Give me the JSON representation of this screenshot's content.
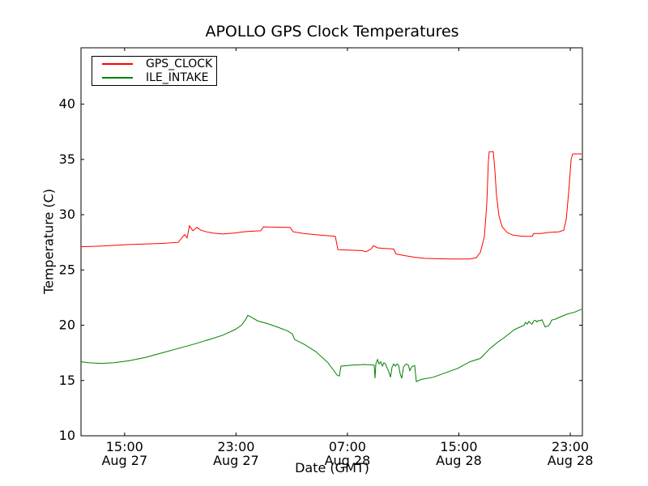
{
  "chart_data": {
    "type": "line",
    "title": "APOLLO GPS Clock Temperatures",
    "xlabel": "Date (GMT)",
    "ylabel": "Temperature (C)",
    "x_unit": "hours since Aug 27 00:00 GMT",
    "xlim": [
      11.87,
      47.87
    ],
    "ylim": [
      10,
      45.1
    ],
    "grid": false,
    "legend_position": "upper-left",
    "axis_color": "#000000",
    "background_color": "#ffffff",
    "yticks": [
      10,
      15,
      20,
      25,
      30,
      35,
      40
    ],
    "xticks": [
      {
        "x": 15,
        "time": "15:00",
        "date": "Aug 27"
      },
      {
        "x": 23,
        "time": "23:00",
        "date": "Aug 27"
      },
      {
        "x": 31,
        "time": "07:00",
        "date": "Aug 28"
      },
      {
        "x": 39,
        "time": "15:00",
        "date": "Aug 28"
      },
      {
        "x": 47,
        "time": "23:00",
        "date": "Aug 28"
      }
    ],
    "series": [
      {
        "name": "GPS_CLOCK",
        "color": "#ff0000",
        "points": [
          [
            11.87,
            27.1
          ],
          [
            13.03,
            27.15
          ],
          [
            15.36,
            27.3
          ],
          [
            17.69,
            27.4
          ],
          [
            18.85,
            27.5
          ],
          [
            19.31,
            28.2
          ],
          [
            19.49,
            27.9
          ],
          [
            19.66,
            29.0
          ],
          [
            19.9,
            28.55
          ],
          [
            20.19,
            28.85
          ],
          [
            20.48,
            28.6
          ],
          [
            20.88,
            28.45
          ],
          [
            21.29,
            28.35
          ],
          [
            22.05,
            28.25
          ],
          [
            22.92,
            28.35
          ],
          [
            23.5,
            28.45
          ],
          [
            24.08,
            28.5
          ],
          [
            24.78,
            28.55
          ],
          [
            24.96,
            28.9
          ],
          [
            26.88,
            28.85
          ],
          [
            27.11,
            28.45
          ],
          [
            27.86,
            28.3
          ],
          [
            29.03,
            28.15
          ],
          [
            30.13,
            28.05
          ],
          [
            30.31,
            26.85
          ],
          [
            31.06,
            26.8
          ],
          [
            32.05,
            26.75
          ],
          [
            32.34,
            26.65
          ],
          [
            32.69,
            26.9
          ],
          [
            32.87,
            27.2
          ],
          [
            33.16,
            27.0
          ],
          [
            33.68,
            26.95
          ],
          [
            34.32,
            26.9
          ],
          [
            34.49,
            26.45
          ],
          [
            35.13,
            26.3
          ],
          [
            35.83,
            26.15
          ],
          [
            36.59,
            26.05
          ],
          [
            38.33,
            26.0
          ],
          [
            39.79,
            26.0
          ],
          [
            40.25,
            26.1
          ],
          [
            40.54,
            26.6
          ],
          [
            40.83,
            28.0
          ],
          [
            41.01,
            31.0
          ],
          [
            41.12,
            34.8
          ],
          [
            41.18,
            35.7
          ],
          [
            41.47,
            35.7
          ],
          [
            41.59,
            34.0
          ],
          [
            41.7,
            31.8
          ],
          [
            41.88,
            29.9
          ],
          [
            42.11,
            28.9
          ],
          [
            42.46,
            28.4
          ],
          [
            42.87,
            28.15
          ],
          [
            43.57,
            28.05
          ],
          [
            44.26,
            28.05
          ],
          [
            44.38,
            28.3
          ],
          [
            44.9,
            28.3
          ],
          [
            45.49,
            28.4
          ],
          [
            46.18,
            28.45
          ],
          [
            46.53,
            28.6
          ],
          [
            46.71,
            29.6
          ],
          [
            46.88,
            32.0
          ],
          [
            47.06,
            35.0
          ],
          [
            47.17,
            35.5
          ],
          [
            47.81,
            35.5
          ]
        ]
      },
      {
        "name": "ILE_INTAKE",
        "color": "#008000",
        "points": [
          [
            11.87,
            16.7
          ],
          [
            12.45,
            16.6
          ],
          [
            13.33,
            16.55
          ],
          [
            14.2,
            16.6
          ],
          [
            15.36,
            16.8
          ],
          [
            16.52,
            17.1
          ],
          [
            17.69,
            17.5
          ],
          [
            18.85,
            17.9
          ],
          [
            20.01,
            18.3
          ],
          [
            21.18,
            18.75
          ],
          [
            22.05,
            19.1
          ],
          [
            22.92,
            19.6
          ],
          [
            23.39,
            20.0
          ],
          [
            23.68,
            20.5
          ],
          [
            23.85,
            20.9
          ],
          [
            24.08,
            20.75
          ],
          [
            24.55,
            20.4
          ],
          [
            25.25,
            20.15
          ],
          [
            25.83,
            19.9
          ],
          [
            26.7,
            19.5
          ],
          [
            27.05,
            19.2
          ],
          [
            27.22,
            18.7
          ],
          [
            27.86,
            18.3
          ],
          [
            28.74,
            17.6
          ],
          [
            29.61,
            16.6
          ],
          [
            30.02,
            15.9
          ],
          [
            30.25,
            15.5
          ],
          [
            30.42,
            15.4
          ],
          [
            30.54,
            16.3
          ],
          [
            31.35,
            16.4
          ],
          [
            32.22,
            16.45
          ],
          [
            32.87,
            16.4
          ],
          [
            32.92,
            16.4
          ],
          [
            32.98,
            15.2
          ],
          [
            33.04,
            16.5
          ],
          [
            33.16,
            16.9
          ],
          [
            33.27,
            16.5
          ],
          [
            33.39,
            16.7
          ],
          [
            33.51,
            16.3
          ],
          [
            33.62,
            16.6
          ],
          [
            33.74,
            16.5
          ],
          [
            33.86,
            16.1
          ],
          [
            33.97,
            15.8
          ],
          [
            34.09,
            15.3
          ],
          [
            34.2,
            16.2
          ],
          [
            34.32,
            16.5
          ],
          [
            34.44,
            16.3
          ],
          [
            34.55,
            16.5
          ],
          [
            34.67,
            16.4
          ],
          [
            34.79,
            15.6
          ],
          [
            34.9,
            15.2
          ],
          [
            35.02,
            16.2
          ],
          [
            35.13,
            16.4
          ],
          [
            35.25,
            16.5
          ],
          [
            35.37,
            16.4
          ],
          [
            35.48,
            15.9
          ],
          [
            35.6,
            16.2
          ],
          [
            35.71,
            16.3
          ],
          [
            35.83,
            16.35
          ],
          [
            35.89,
            15.6
          ],
          [
            35.95,
            14.9
          ],
          [
            36.3,
            15.1
          ],
          [
            37.17,
            15.3
          ],
          [
            38.04,
            15.7
          ],
          [
            38.92,
            16.1
          ],
          [
            39.79,
            16.7
          ],
          [
            40.54,
            17.0
          ],
          [
            41.24,
            17.9
          ],
          [
            41.82,
            18.5
          ],
          [
            42.28,
            18.9
          ],
          [
            42.98,
            19.6
          ],
          [
            43.68,
            20.0
          ],
          [
            43.79,
            20.25
          ],
          [
            43.91,
            20.1
          ],
          [
            44.03,
            20.35
          ],
          [
            44.14,
            20.2
          ],
          [
            44.26,
            20.1
          ],
          [
            44.38,
            20.4
          ],
          [
            44.49,
            20.45
          ],
          [
            44.61,
            20.3
          ],
          [
            44.73,
            20.45
          ],
          [
            44.84,
            20.4
          ],
          [
            44.96,
            20.5
          ],
          [
            45.07,
            20.2
          ],
          [
            45.19,
            19.85
          ],
          [
            45.31,
            19.9
          ],
          [
            45.42,
            19.95
          ],
          [
            45.54,
            20.1
          ],
          [
            45.65,
            20.45
          ],
          [
            45.77,
            20.5
          ],
          [
            45.94,
            20.55
          ],
          [
            46.18,
            20.7
          ],
          [
            46.76,
            21.0
          ],
          [
            47.34,
            21.2
          ],
          [
            47.81,
            21.45
          ]
        ]
      }
    ]
  }
}
